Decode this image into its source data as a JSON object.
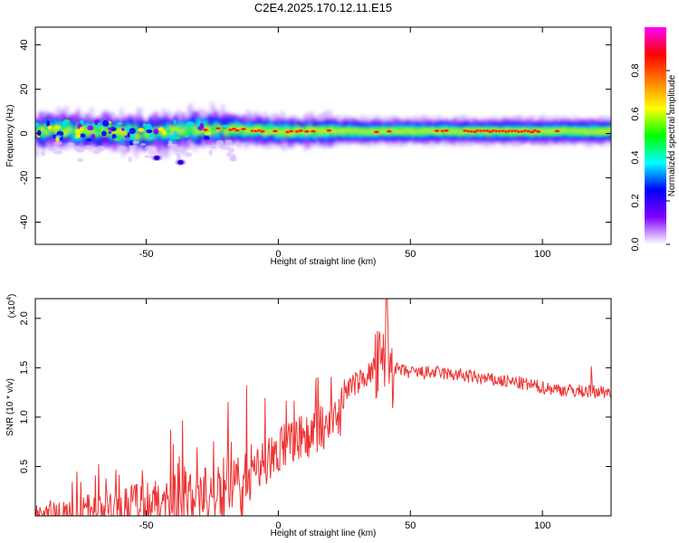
{
  "title": "C2E4.2025.170.12.11.E15",
  "colors": {
    "snr_line": "#ee3333",
    "spectrogram_background": "#ffffff",
    "ridge": "#dd1111"
  },
  "chart_data": [
    {
      "type": "heatmap",
      "xlabel": "Height of straight line (km)",
      "ylabel": "Frequency (Hz)",
      "xlim": [
        -92,
        126
      ],
      "ylim": [
        -50,
        48
      ],
      "x_ticks": [
        -50,
        0,
        50,
        100
      ],
      "y_ticks": [
        -40,
        -20,
        0,
        20,
        40
      ],
      "colorbar": {
        "label": "Normalized spectral amplitude",
        "range": [
          0,
          1
        ],
        "ticks": [
          "0.0",
          "0.2",
          "0.4",
          "0.6",
          "0.8"
        ],
        "colormap": [
          "#ffffff",
          "#8000ff",
          "#0000ff",
          "#00ffff",
          "#00ff00",
          "#ffff00",
          "#ff8000",
          "#ff0000",
          "#ff00ff"
        ]
      },
      "ridge": [
        {
          "x": -90,
          "f": 1
        },
        {
          "x": -70,
          "f": 1
        },
        {
          "x": -50,
          "f": 0
        },
        {
          "x": -30,
          "f": 2
        },
        {
          "x": -20,
          "f": 2
        },
        {
          "x": 0,
          "f": 1
        },
        {
          "x": 20,
          "f": 1
        },
        {
          "x": 50,
          "f": 1
        },
        {
          "x": 80,
          "f": 1
        },
        {
          "x": 100,
          "f": 1
        },
        {
          "x": 126,
          "f": 1
        }
      ],
      "isolated_blobs": [
        {
          "x": -46,
          "f": -11
        },
        {
          "x": -37,
          "f": -13
        }
      ]
    },
    {
      "type": "line",
      "xlabel": "Height of straight line (km)",
      "ylabel": "SNR (10 * v/v)",
      "y_multiplier": "(x10",
      "y_multiplier_exp": "4",
      "xlim": [
        -92,
        126
      ],
      "ylim": [
        0,
        2.2
      ],
      "x_ticks": [
        -50,
        0,
        50,
        100
      ],
      "y_ticks": [
        "0.5",
        "1.0",
        "1.5",
        "2.0"
      ],
      "series": [
        {
          "x": [
            -92,
            -80,
            -70,
            -60,
            -50,
            -40,
            -30,
            -20,
            -10,
            0,
            10,
            20,
            30,
            35,
            40,
            42,
            45,
            50,
            60,
            70,
            80,
            90,
            100,
            110,
            118,
            126
          ],
          "y": [
            0.12,
            0.15,
            0.25,
            0.3,
            0.35,
            0.42,
            0.5,
            0.6,
            0.7,
            0.9,
            1.05,
            1.2,
            1.35,
            1.45,
            1.5,
            1.55,
            1.48,
            1.45,
            1.45,
            1.42,
            1.38,
            1.35,
            1.3,
            1.27,
            1.26,
            1.26
          ]
        }
      ]
    }
  ]
}
